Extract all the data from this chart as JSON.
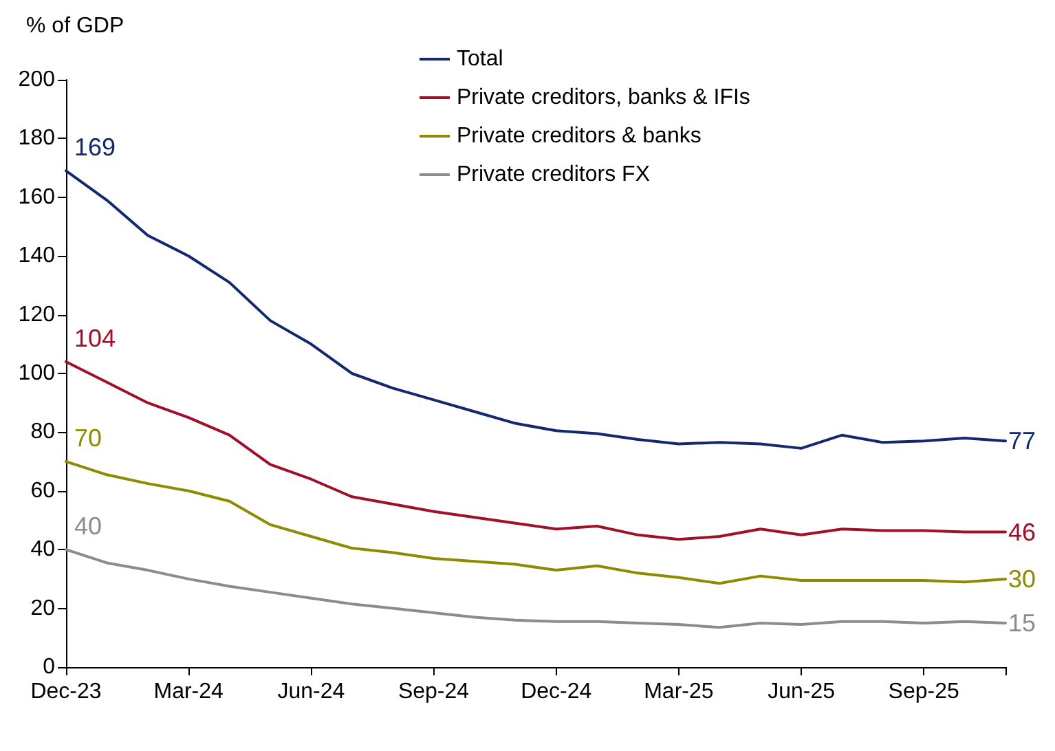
{
  "chart_data": {
    "type": "line",
    "ylabel": "% of GDP",
    "categories": [
      "Dec-23",
      null,
      null,
      "Mar-24",
      null,
      null,
      "Jun-24",
      null,
      null,
      "Sep-24",
      null,
      null,
      "Dec-24",
      null,
      null,
      "Mar-25",
      null,
      null,
      "Jun-25",
      null,
      null,
      "Sep-25",
      null,
      null
    ],
    "series": [
      {
        "name": "Total",
        "color": "#14286e",
        "values": [
          169,
          159,
          147,
          140,
          131,
          118,
          110,
          100,
          95,
          91,
          87,
          83,
          80.5,
          79.5,
          77.5,
          76,
          76.5,
          76,
          74.5,
          79,
          76.5,
          77,
          78,
          77
        ],
        "value_labels": [
          "169",
          null,
          null,
          null,
          null,
          null,
          null,
          null,
          null,
          null,
          null,
          null,
          null,
          null,
          null,
          null,
          null,
          null,
          null,
          null,
          null,
          null,
          null,
          "77"
        ]
      },
      {
        "name": "Private creditors, banks & IFIs",
        "color": "#a0102a",
        "values": [
          104,
          97,
          90,
          85,
          79,
          69,
          64,
          58,
          55.5,
          53,
          51,
          49,
          47,
          48,
          45,
          43.5,
          44.5,
          47,
          45,
          47,
          46.5,
          46.5,
          46,
          46
        ],
        "value_labels": [
          "104",
          null,
          null,
          null,
          null,
          null,
          null,
          null,
          null,
          null,
          null,
          null,
          null,
          null,
          null,
          null,
          null,
          null,
          null,
          null,
          null,
          null,
          null,
          "46"
        ]
      },
      {
        "name": "Private creditors & banks",
        "color": "#8c8c00",
        "values": [
          70,
          65.5,
          62.5,
          60,
          56.5,
          48.5,
          44.5,
          40.5,
          39,
          37,
          36,
          35,
          33,
          34.5,
          32,
          30.5,
          28.5,
          31,
          29.5,
          29.5,
          29.5,
          29.5,
          29,
          30
        ],
        "value_labels": [
          "70",
          null,
          null,
          null,
          null,
          null,
          null,
          null,
          null,
          null,
          null,
          null,
          null,
          null,
          null,
          null,
          null,
          null,
          null,
          null,
          null,
          null,
          null,
          "30"
        ]
      },
      {
        "name": "Private creditors FX",
        "color": "#8c8c8c",
        "values": [
          40,
          35.5,
          33,
          30,
          27.5,
          25.5,
          23.5,
          21.5,
          20,
          18.5,
          17,
          16,
          15.5,
          15.5,
          15,
          14.5,
          13.5,
          15,
          14.5,
          15.5,
          15.5,
          15,
          15.5,
          15
        ],
        "value_labels": [
          "40",
          null,
          null,
          null,
          null,
          null,
          null,
          null,
          null,
          null,
          null,
          null,
          null,
          null,
          null,
          null,
          null,
          null,
          null,
          null,
          null,
          null,
          null,
          "15"
        ]
      }
    ],
    "ylim": [
      0,
      200
    ],
    "yticks": [
      0,
      20,
      40,
      60,
      80,
      100,
      120,
      140,
      160,
      180,
      200
    ],
    "grid": false,
    "legend": "top",
    "marker": "none",
    "line_style": "solid"
  }
}
